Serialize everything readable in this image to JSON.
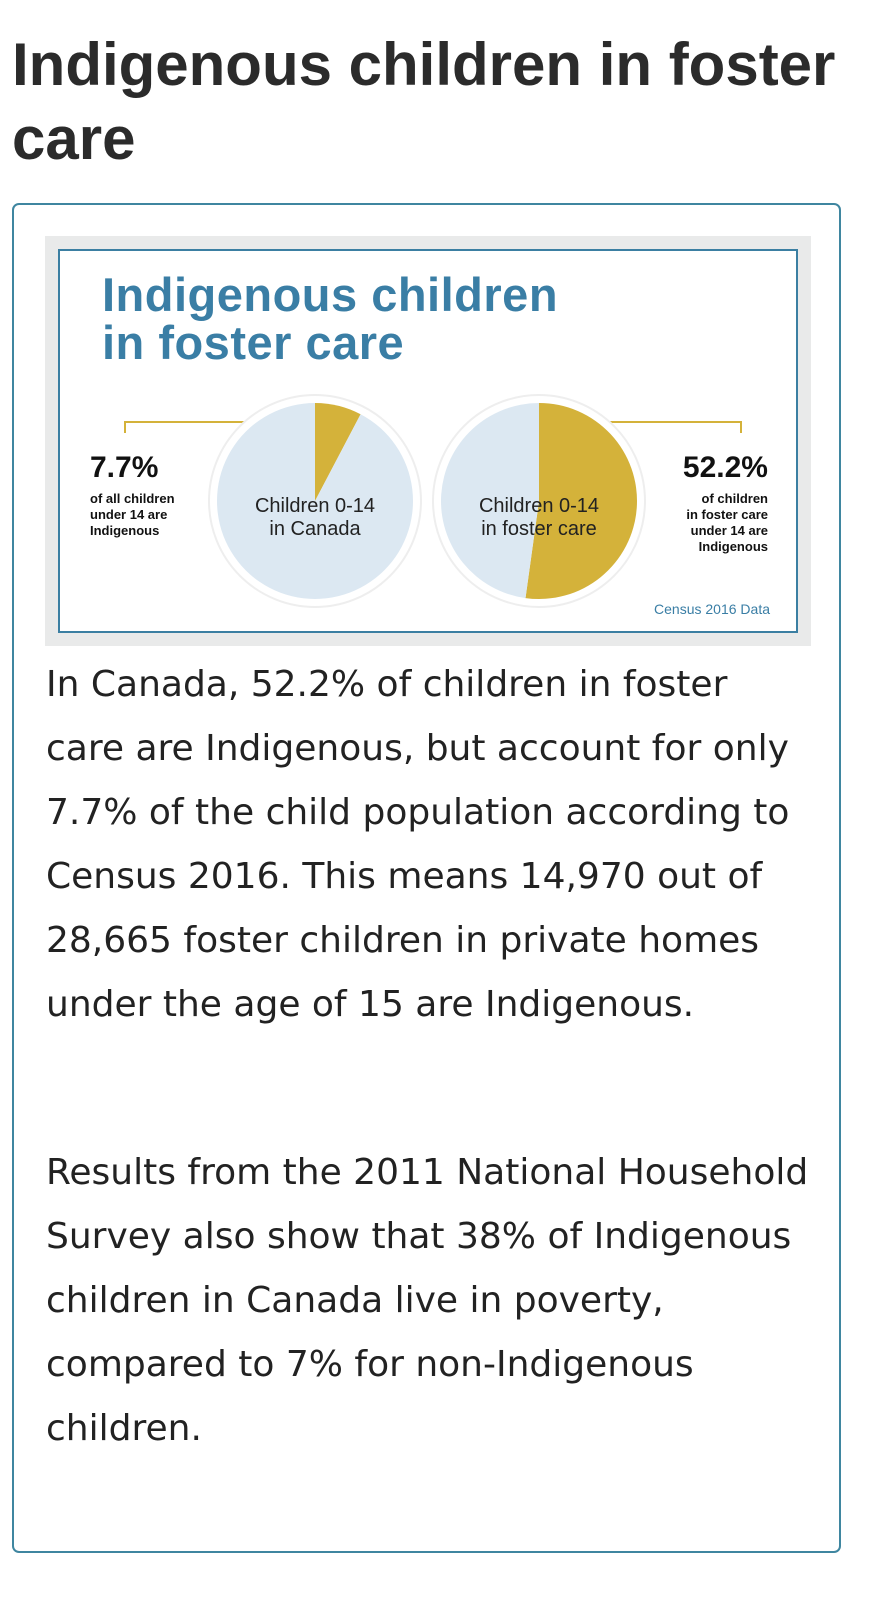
{
  "page": {
    "title": "Indigenous children in foster care"
  },
  "infographic": {
    "title_line1": "Indigenous children",
    "title_line2": "in foster care",
    "left_stat": "7.7%",
    "left_desc": [
      "of all children",
      "under 14 are",
      "Indigenous"
    ],
    "left_pie_label": [
      "Children 0-14",
      "in Canada"
    ],
    "right_stat": "52.2%",
    "right_desc": [
      "of children",
      "in foster care",
      "under 14 are",
      "Indigenous"
    ],
    "right_pie_label": [
      "Children 0-14",
      "in foster care"
    ],
    "source": "Census 2016 Data",
    "colors": {
      "accent": "#d4b23a",
      "base": "#dce8f2",
      "title": "#3a7ea5"
    }
  },
  "chart_data": [
    {
      "type": "pie",
      "title": "Children 0-14 in Canada",
      "categories": [
        "Indigenous",
        "Non-Indigenous"
      ],
      "values": [
        7.7,
        92.3
      ]
    },
    {
      "type": "pie",
      "title": "Children 0-14 in foster care",
      "categories": [
        "Indigenous",
        "Non-Indigenous"
      ],
      "values": [
        52.2,
        47.8
      ]
    }
  ],
  "paragraphs": [
    "In Canada, 52.2% of children in foster care are Indigenous, but account for only 7.7% of the child population according to Census 2016. This means 14,970 out of 28,665 foster children in private homes under the age of 15 are Indigenous.",
    "Results from the 2011 National Household Survey also show that 38% of Indigenous children in Canada live in poverty, compared to 7% for non-Indigenous children."
  ]
}
